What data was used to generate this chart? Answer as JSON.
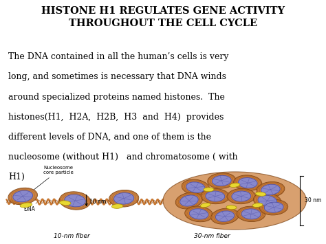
{
  "title_line1": "HISTONE H1 REGULATES GENE ACTIVITY",
  "title_line2": "THROUGHOUT THE CELL CYCLE",
  "title_fontsize": 10.5,
  "body_text_lines": [
    "The DNA contained in all the human’s cells is very",
    "long, and sometimes is necessary that DNA winds",
    "around specialized proteins named histones.  The",
    "histones(H1,  H2A,  H2B,  H3  and  H4)  provides",
    "different levels of DNA, and one of them is the",
    "nucleosome (without H1)   and chromatosome ( with",
    "H1)"
  ],
  "body_fontsize": 9.0,
  "bg_color": "#ffffff",
  "text_color": "#000000",
  "caption_left": "10-nm fiber",
  "caption_mid": "30-nm fiber",
  "caption_fontsize": 6.5,
  "figsize": [
    4.74,
    3.55
  ],
  "dpi": 100,
  "dna_color": "#c87832",
  "histone_color": "#8888cc",
  "h1_color": "#e8d832",
  "histone_edge": "#5555aa",
  "dna_edge": "#7a4010"
}
